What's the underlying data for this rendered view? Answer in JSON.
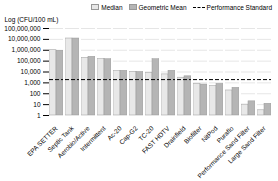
{
  "chart_data": {
    "type": "bar",
    "categories": [
      "EPA SETTER",
      "Septic Tank",
      "Aerobio/Active",
      "Intermittent",
      "Ac-20",
      "Cap-G2",
      "TC-20",
      "FAST HDTV",
      "Drainfield",
      "Biofilter",
      "NitPod",
      "Puraflo",
      "Performance Sand Filter",
      "Large Sand Filter"
    ],
    "series": [
      {
        "name": "Median",
        "color": "#e8e8e8",
        "values": [
          1000000,
          12000000,
          200000,
          150000,
          12000,
          10000,
          8000,
          6000,
          3000,
          800,
          500,
          200,
          10,
          3
        ]
      },
      {
        "name": "Geometric Mean",
        "color": "#b5b5b5",
        "values": [
          900000,
          12000000,
          250000,
          150000,
          13000,
          10000,
          150000,
          13000,
          4000,
          700,
          800,
          350,
          20,
          12
        ]
      }
    ],
    "reference_lines": [
      {
        "name": "Performance Standard",
        "value": 2000,
        "color": "#000000",
        "line_style": "dashed"
      }
    ],
    "ylabel": "Log (CFU/100 mL)",
    "log": "y",
    "ylim": [
      1,
      100000000
    ],
    "yticks": [
      1,
      10,
      100,
      {
        "value": 1000,
        "label": "1,000"
      },
      {
        "value": 10000,
        "label": "10,000"
      },
      {
        "value": 100000,
        "label": "100,000"
      },
      {
        "value": 1000000,
        "label": "1,000,000"
      },
      {
        "value": 10000000,
        "label": "10,000,000"
      },
      {
        "value": 100000000,
        "label": "100,000,000"
      }
    ],
    "grid": true,
    "legend": "upper right"
  }
}
